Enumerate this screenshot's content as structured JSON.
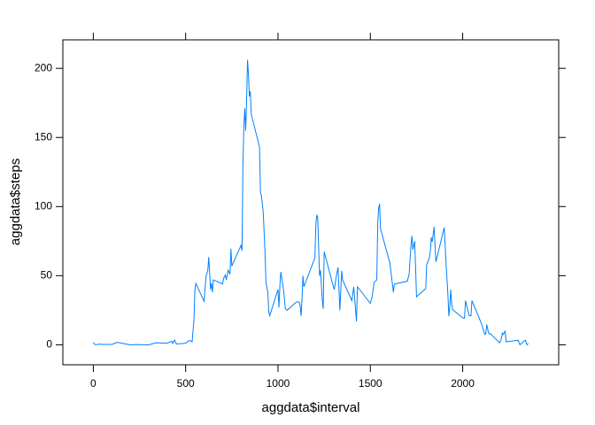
{
  "chart_data": {
    "type": "line",
    "x_label": "aggdata$interval",
    "y_label": "aggdata$steps",
    "x": [
      0,
      10,
      20,
      30,
      50,
      100,
      130,
      200,
      230,
      300,
      340,
      400,
      425,
      430,
      440,
      450,
      500,
      520,
      535,
      545,
      550,
      555,
      600,
      610,
      620,
      625,
      635,
      640,
      645,
      650,
      700,
      705,
      715,
      720,
      730,
      740,
      745,
      750,
      800,
      805,
      810,
      815,
      820,
      825,
      830,
      835,
      840,
      845,
      850,
      855,
      900,
      905,
      910,
      920,
      930,
      935,
      945,
      950,
      955,
      1000,
      1005,
      1010,
      1015,
      1030,
      1040,
      1050,
      1100,
      1115,
      1120,
      1125,
      1130,
      1135,
      1140,
      1200,
      1205,
      1210,
      1215,
      1225,
      1230,
      1240,
      1245,
      1250,
      1300,
      1305,
      1315,
      1325,
      1335,
      1340,
      1345,
      1350,
      1400,
      1410,
      1425,
      1430,
      1500,
      1510,
      1520,
      1535,
      1540,
      1545,
      1550,
      1555,
      1600,
      1605,
      1625,
      1630,
      1700,
      1710,
      1720,
      1725,
      1730,
      1740,
      1745,
      1750,
      1800,
      1805,
      1820,
      1825,
      1830,
      1835,
      1845,
      1850,
      1855,
      1900,
      1910,
      1920,
      1925,
      1930,
      1935,
      1940,
      1945,
      2000,
      2010,
      2015,
      2035,
      2045,
      2050,
      2100,
      2120,
      2125,
      2130,
      2140,
      2145,
      2150,
      2200,
      2210,
      2215,
      2220,
      2225,
      2230,
      2235,
      2300,
      2310,
      2315,
      2320,
      2330,
      2340,
      2345,
      2350,
      2355
    ],
    "series": [
      {
        "color": "#0080ff",
        "values": [
          1.7,
          0.1,
          0.1,
          0.5,
          0.3,
          0.3,
          1.8,
          0,
          0.2,
          0,
          1.5,
          1.2,
          2.6,
          1.0,
          3.5,
          0.6,
          1.2,
          3.3,
          2.2,
          18.3,
          39.5,
          44.5,
          31.5,
          49.3,
          53.8,
          63.5,
          40,
          44.5,
          38,
          47,
          44,
          48,
          50.5,
          47,
          54,
          51,
          69.5,
          57,
          72,
          68,
          129,
          157,
          171,
          155,
          177,
          206.2,
          195.9,
          179.6,
          183.4,
          167,
          143,
          110,
          108,
          96,
          66,
          45,
          38,
          24,
          21,
          40,
          27,
          42,
          52.7,
          40,
          26,
          25,
          31,
          31,
          28,
          21,
          33,
          50,
          42,
          63,
          87,
          94,
          92,
          50,
          54,
          32,
          26,
          67.4,
          42,
          40,
          49,
          56,
          25,
          39.7,
          53.5,
          47,
          32,
          42,
          17,
          42,
          30,
          35,
          45,
          47,
          88,
          98.7,
          102,
          84,
          62,
          60,
          38,
          44,
          46,
          51,
          72,
          78.9,
          68.9,
          75,
          56,
          34.8,
          40.7,
          58,
          63,
          67.8,
          77.7,
          74.5,
          85.3,
          72.7,
          60,
          84.9,
          59,
          36,
          20.7,
          27.4,
          40,
          30.2,
          25.5,
          19.6,
          19.3,
          32,
          21,
          21,
          32,
          15.9,
          7.5,
          8,
          14.7,
          8.7,
          7.8,
          8.1,
          1.4,
          4.8,
          8.5,
          7.5,
          8.7,
          9.8,
          2.2,
          3.3,
          0,
          0.8,
          1,
          2.6,
          3.3,
          0.6,
          0.2,
          1.1
        ]
      }
    ],
    "xlim": [
      -164.85,
      2519.85
    ],
    "ylim": [
      -14.43,
      220.6
    ],
    "xticks": [
      0,
      500,
      1000,
      1500,
      2000
    ],
    "yticks": [
      0,
      50,
      100,
      150,
      200
    ]
  }
}
